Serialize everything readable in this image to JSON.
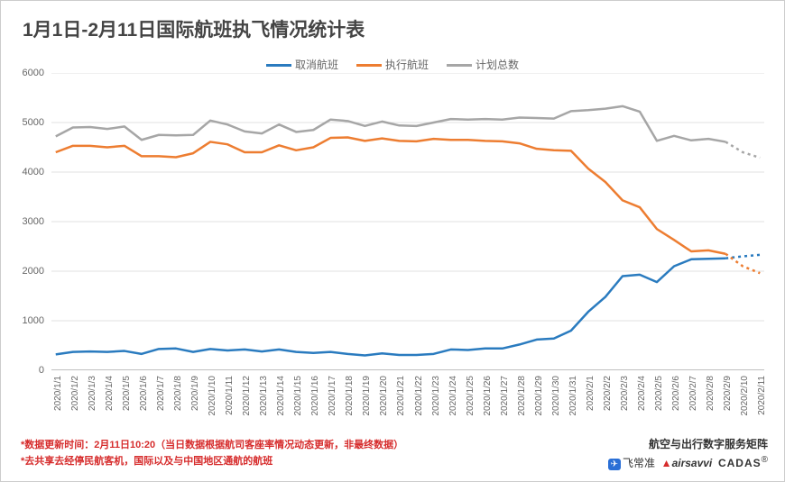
{
  "chart": {
    "type": "line",
    "title": "1月1日-2月11日国际航班执飞情况统计表",
    "title_fontsize": 21,
    "title_color": "#444444",
    "background_color": "#ffffff",
    "grid_color": "#e0e0e0",
    "axis_color": "#999999",
    "label_fontsize": 11,
    "label_color": "#666666",
    "ylim": [
      0,
      6000
    ],
    "ytick_step": 1000,
    "yticks": [
      0,
      1000,
      2000,
      3000,
      4000,
      5000,
      6000
    ],
    "categories": [
      "2020/1/1",
      "2020/1/2",
      "2020/1/3",
      "2020/1/4",
      "2020/1/5",
      "2020/1/6",
      "2020/1/7",
      "2020/1/8",
      "2020/1/9",
      "2020/1/10",
      "2020/1/11",
      "2020/1/12",
      "2020/1/13",
      "2020/1/14",
      "2020/1/15",
      "2020/1/16",
      "2020/1/17",
      "2020/1/18",
      "2020/1/19",
      "2020/1/20",
      "2020/1/21",
      "2020/1/22",
      "2020/1/23",
      "2020/1/24",
      "2020/1/25",
      "2020/1/26",
      "2020/1/27",
      "2020/1/28",
      "2020/1/29",
      "2020/1/30",
      "2020/1/31",
      "2020/2/1",
      "2020/2/2",
      "2020/2/3",
      "2020/2/4",
      "2020/2/5",
      "2020/2/6",
      "2020/2/7",
      "2020/2/8",
      "2020/2/9",
      "2020/2/10",
      "2020/2/11"
    ],
    "series": [
      {
        "name": "取消航班",
        "color": "#2a7bbf",
        "line_width": 2.5,
        "dash_tail": 2,
        "values": [
          320,
          370,
          380,
          370,
          390,
          330,
          430,
          440,
          370,
          430,
          400,
          420,
          380,
          420,
          370,
          350,
          370,
          330,
          300,
          340,
          310,
          310,
          330,
          420,
          410,
          440,
          440,
          520,
          620,
          640,
          800,
          1180,
          1480,
          1900,
          1930,
          1780,
          2100,
          2240,
          2250,
          2260,
          2300,
          2330
        ]
      },
      {
        "name": "执行航班",
        "color": "#ed7d31",
        "line_width": 2.5,
        "dash_tail": 2,
        "values": [
          4400,
          4530,
          4530,
          4500,
          4530,
          4320,
          4320,
          4300,
          4380,
          4610,
          4560,
          4400,
          4400,
          4540,
          4440,
          4500,
          4690,
          4700,
          4630,
          4680,
          4630,
          4620,
          4670,
          4650,
          4650,
          4630,
          4620,
          4580,
          4470,
          4440,
          4430,
          4070,
          3800,
          3430,
          3290,
          2850,
          2630,
          2400,
          2420,
          2350,
          2100,
          1960
        ]
      },
      {
        "name": "计划总数",
        "color": "#a6a6a6",
        "line_width": 2.5,
        "dash_tail": 2,
        "values": [
          4720,
          4900,
          4910,
          4870,
          4920,
          4650,
          4750,
          4740,
          4750,
          5040,
          4960,
          4820,
          4780,
          4960,
          4810,
          4850,
          5060,
          5030,
          4930,
          5020,
          4940,
          4930,
          5000,
          5070,
          5060,
          5070,
          5060,
          5100,
          5090,
          5080,
          5230,
          5250,
          5280,
          5330,
          5220,
          4630,
          4730,
          4640,
          4670,
          4610,
          4400,
          4290
        ]
      }
    ],
    "legend_position": "top-center",
    "legend_fontsize": 12
  },
  "footnotes": {
    "line1": "*数据更新时间：2月11日10:20（当日数据根据航司客座率情况动态更新，非最终数据）",
    "line2": "*去共享去经停民航客机，国际以及与中国地区通航的航班",
    "color": "#d62c2c",
    "fontsize": 11
  },
  "footer": {
    "title": "航空与出行数字服务矩阵",
    "logos": [
      "飞常准",
      "airsavvi",
      "CADAS"
    ]
  }
}
